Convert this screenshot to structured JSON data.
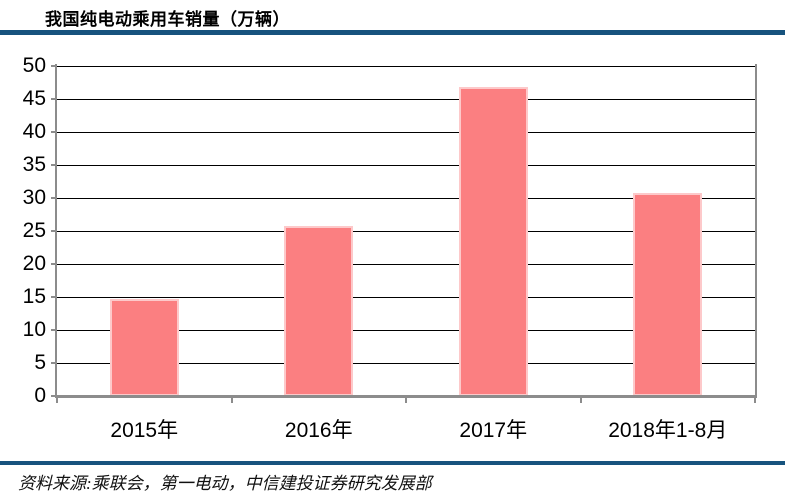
{
  "header": {
    "title": "我国纯电动乘用车销量（万辆）"
  },
  "footer": {
    "source": "资料来源:乘联会，第一电动，中信建投证券研究发展部"
  },
  "colors": {
    "bar_fill": "#FB7F81",
    "bar_edge": "#FDC9CA",
    "rule_blue": "#17537E",
    "axis_gray": "#8C8C8C",
    "gridline": "#000000",
    "text": "#000000"
  },
  "chart_data": {
    "type": "bar",
    "title": "我国纯电动乘用车销量（万辆）",
    "categories": [
      "2015年",
      "2016年",
      "2017年",
      "2018年1-8月"
    ],
    "values": [
      14.7,
      25.7,
      46.8,
      30.8
    ],
    "xlabel": "",
    "ylabel": "",
    "ylim": [
      0,
      50
    ],
    "ytick_step": 5,
    "yticks": [
      0,
      5,
      10,
      15,
      20,
      25,
      30,
      35,
      40,
      45,
      50
    ],
    "grid": true,
    "legend": false,
    "bar_color": "#FB7F81",
    "source": "资料来源:乘联会，第一电动，中信建投证券研究发展部"
  }
}
